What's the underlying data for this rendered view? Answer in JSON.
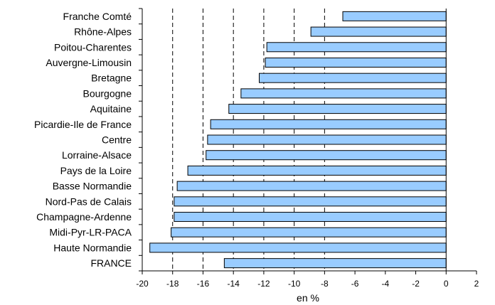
{
  "chart_data": {
    "type": "bar",
    "orientation": "horizontal",
    "title": "",
    "xlabel": "en %",
    "ylabel": "",
    "categories": [
      "Franche Comté",
      "Rhône-Alpes",
      "Poitou-Charentes",
      "Auvergne-Limousin",
      "Bretagne",
      "Bourgogne",
      "Aquitaine",
      "Picardie-Ile de France",
      "Centre",
      "Lorraine-Alsace",
      "Pays de la Loire",
      "Basse Normandie",
      "Nord-Pas de Calais",
      "Champagne-Ardenne",
      "Midi-Pyr-LR-PACA",
      "Haute Normandie",
      "FRANCE"
    ],
    "values": [
      -6.8,
      -8.9,
      -11.8,
      -11.9,
      -12.3,
      -13.5,
      -14.3,
      -15.5,
      -15.7,
      -15.8,
      -17.0,
      -17.7,
      -17.9,
      -17.9,
      -18.1,
      -19.5,
      -14.6
    ],
    "xlim": [
      -20,
      2
    ],
    "xticks": [
      -20,
      -18,
      -16,
      -14,
      -12,
      -10,
      -8,
      -6,
      -4,
      -2,
      0,
      2
    ],
    "gridlines_x": [
      -18,
      -16,
      -14,
      -12,
      -10,
      -8
    ],
    "grid_style": "dashed",
    "legend": "none",
    "colors": {
      "bar_fill": "#99CCFF",
      "bar_stroke": "#000000",
      "grid": "#000000"
    }
  }
}
